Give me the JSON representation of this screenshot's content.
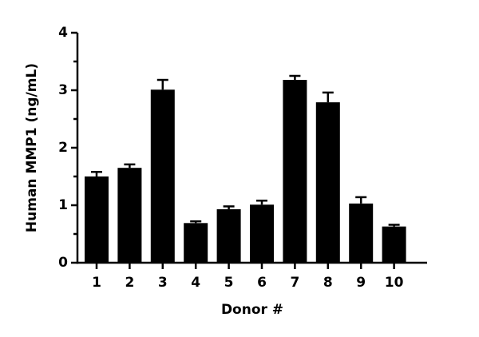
{
  "chart_data": {
    "type": "bar",
    "x_label": "Donor #",
    "y_label": "Human MMP1 (ng/mL)",
    "categories": [
      "1",
      "2",
      "3",
      "4",
      "5",
      "6",
      "7",
      "8",
      "9",
      "10"
    ],
    "values": [
      1.5,
      1.65,
      3.01,
      0.69,
      0.93,
      1.01,
      3.18,
      2.79,
      1.03,
      0.63
    ],
    "errors": [
      0.08,
      0.06,
      0.17,
      0.03,
      0.05,
      0.07,
      0.07,
      0.17,
      0.11,
      0.03
    ],
    "color": "#000000",
    "ylim": [
      0,
      4
    ],
    "yticks": [
      0,
      1,
      2,
      3,
      4
    ],
    "minor_yticks": [
      0.5,
      1.5,
      2.5,
      3.5
    ],
    "grid": false
  }
}
